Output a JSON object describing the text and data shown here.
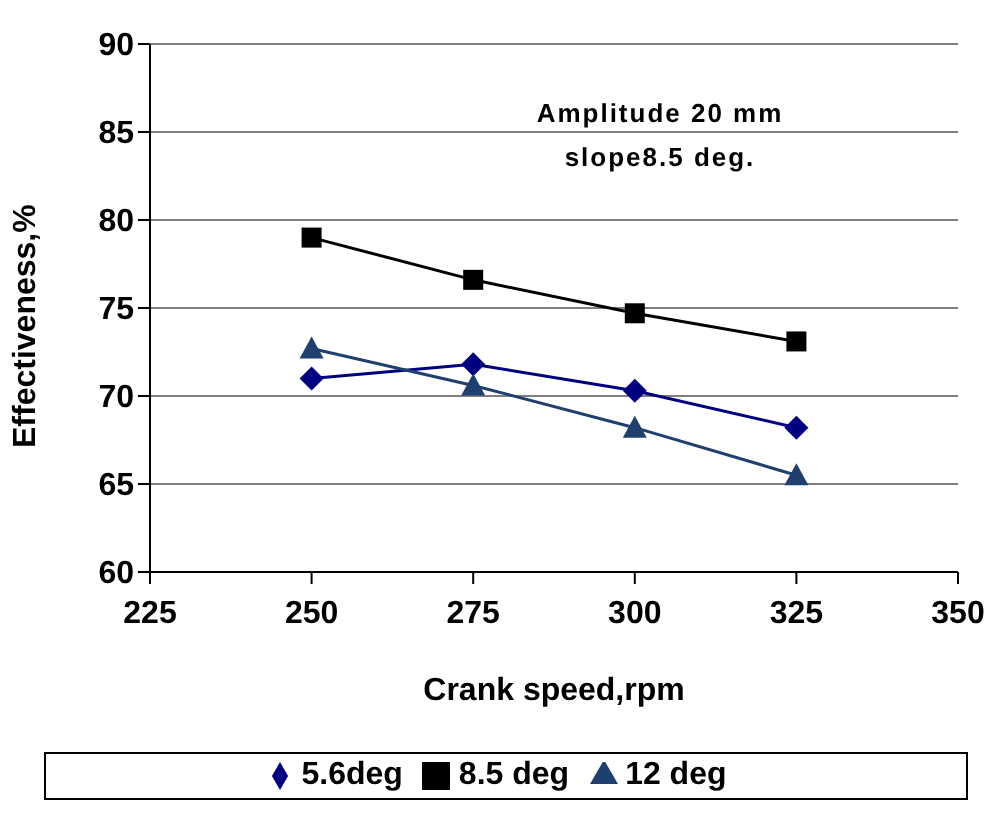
{
  "chart_data": {
    "type": "line",
    "xlabel": "Crank speed,rpm",
    "ylabel": "Effectiveness,%",
    "annotations": [
      "Amplitude  20 mm",
      "slope8.5 deg."
    ],
    "x": [
      250,
      275,
      300,
      325
    ],
    "series": [
      {
        "name": "5.6deg",
        "color": "#000080",
        "marker": "diamond",
        "values": [
          71,
          71.8,
          70.3,
          68.2
        ]
      },
      {
        "name": "8.5 deg",
        "color": "#000000",
        "marker": "square",
        "values": [
          79,
          76.6,
          74.7,
          73.1
        ]
      },
      {
        "name": "12 deg",
        "color": "#1f3f6f",
        "marker": "triangle",
        "values": [
          72.7,
          70.6,
          68.2,
          65.5
        ]
      }
    ],
    "xlim": [
      225,
      350
    ],
    "xticks": [
      225,
      250,
      275,
      300,
      325,
      350
    ],
    "ylim": [
      60,
      90
    ],
    "yticks": [
      60,
      65,
      70,
      75,
      80,
      85,
      90
    ],
    "grid": "y",
    "legend": "bottom",
    "line_style": "solid"
  }
}
